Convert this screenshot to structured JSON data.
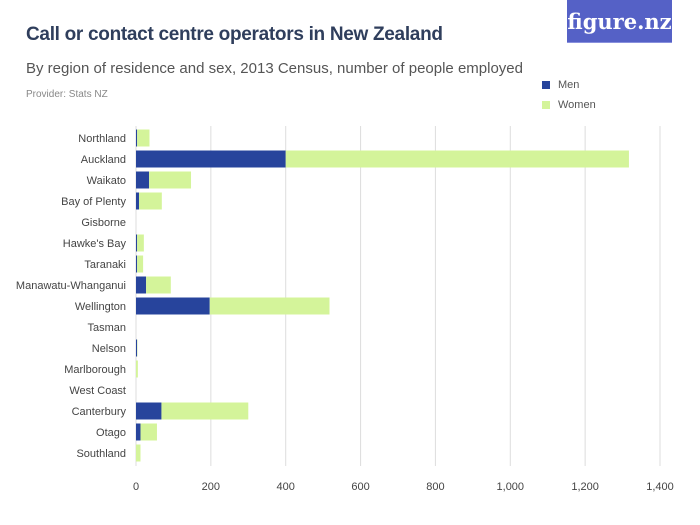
{
  "header": {
    "title": "Call or contact centre operators in New Zealand",
    "subtitle": "By region of residence and sex, 2013 Census, number of people employed",
    "provider": "Provider: Stats NZ",
    "logo": "figure.nz"
  },
  "colors": {
    "men": "#27449c",
    "women": "#d4f49a",
    "logo_bg": "#5561c6"
  },
  "chart_data": {
    "type": "bar",
    "orientation": "horizontal",
    "stacked": true,
    "title": "Call or contact centre operators in New Zealand",
    "subtitle": "By region of residence and sex, 2013 Census, number of people employed",
    "categories": [
      "Northland",
      "Auckland",
      "Waikato",
      "Bay of Plenty",
      "Gisborne",
      "Hawke's Bay",
      "Taranaki",
      "Manawatu-Whanganui",
      "Wellington",
      "Tasman",
      "Nelson",
      "Marlborough",
      "West Coast",
      "Canterbury",
      "Otago",
      "Southland"
    ],
    "series": [
      {
        "name": "Men",
        "values": [
          3,
          400,
          35,
          8,
          0,
          3,
          3,
          27,
          197,
          0,
          3,
          0,
          0,
          68,
          12,
          0
        ]
      },
      {
        "name": "Women",
        "values": [
          33,
          917,
          112,
          61,
          0,
          18,
          16,
          66,
          320,
          0,
          1,
          5,
          0,
          232,
          44,
          12
        ]
      }
    ],
    "xlim": [
      0,
      1400
    ],
    "xticks": [
      0,
      200,
      400,
      600,
      800,
      1000,
      1200,
      1400
    ],
    "xtick_labels": [
      "0",
      "200",
      "400",
      "600",
      "800",
      "1,000",
      "1,200",
      "1,400"
    ],
    "grid": true,
    "legend": "top-right"
  }
}
